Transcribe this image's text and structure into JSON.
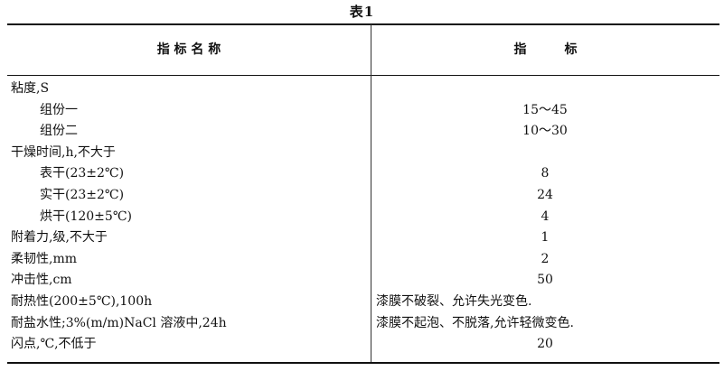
{
  "title": "表1",
  "headers": {
    "name": "指 标 名 称",
    "value": "指　　　标"
  },
  "rows": [
    {
      "name": "粘度,S",
      "value": "",
      "indent": false
    },
    {
      "name": "组份一",
      "value": "15～45",
      "indent": true
    },
    {
      "name": "组份二",
      "value": "10～30",
      "indent": true
    },
    {
      "name": "干燥时间,h,不大于",
      "value": "",
      "indent": false
    },
    {
      "name": "表干(23±2℃)",
      "value": "8",
      "indent": true
    },
    {
      "name": "实干(23±2℃)",
      "value": "24",
      "indent": true
    },
    {
      "name": "烘干(120±5℃)",
      "value": "4",
      "indent": true
    },
    {
      "name": "附着力,级,不大于",
      "value": "1",
      "indent": false
    },
    {
      "name": "柔韧性,mm",
      "value": "2",
      "indent": false
    },
    {
      "name": "冲击性,cm",
      "value": "50",
      "indent": false
    },
    {
      "name": "耐热性(200±5℃),100h",
      "value": "漆膜不破裂、允许失光变色.",
      "indent": false,
      "left": true
    },
    {
      "name": "耐盐水性;3%(m/m)NaCl 溶液中,24h",
      "value": "漆膜不起泡、不脱落,允许轻微变色.",
      "indent": false,
      "left": true
    },
    {
      "name": "闪点,℃,不低于",
      "value": "20",
      "indent": false
    }
  ]
}
